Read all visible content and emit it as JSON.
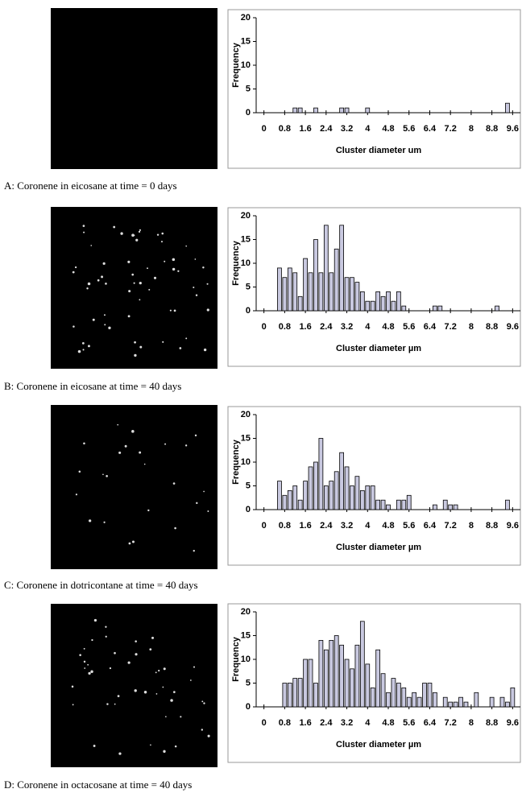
{
  "chart_data": [
    {
      "type": "bar",
      "x_label": "Cluster diameter um",
      "y_label": "Frequency",
      "color": "#c9c9e0",
      "x": [
        1.2,
        1.4,
        2.0,
        3.0,
        3.2,
        4.0,
        9.4
      ],
      "values": [
        1,
        1,
        1,
        1,
        1,
        1,
        2
      ],
      "xlim": [
        -0.3,
        9.9
      ],
      "ylim": [
        0,
        20
      ],
      "xticks": [
        0,
        0.8,
        1.6,
        2.4,
        3.2,
        4,
        4.8,
        5.6,
        6.4,
        7.2,
        8,
        8.8,
        9.6
      ],
      "yticks": [
        0,
        5,
        10,
        15,
        20
      ]
    },
    {
      "type": "bar",
      "x_label": "Cluster diameter µm",
      "y_label": "Frequency",
      "color": "#c9c9e0",
      "x": [
        0.6,
        0.8,
        1.0,
        1.2,
        1.4,
        1.6,
        1.8,
        2.0,
        2.2,
        2.4,
        2.6,
        2.8,
        3.0,
        3.2,
        3.4,
        3.6,
        3.8,
        4.0,
        4.2,
        4.4,
        4.6,
        4.8,
        5.0,
        5.2,
        5.4,
        6.6,
        6.8,
        9.0
      ],
      "values": [
        9,
        7,
        9,
        8,
        3,
        11,
        8,
        15,
        8,
        18,
        8,
        13,
        18,
        7,
        7,
        6,
        4,
        2,
        2,
        4,
        3,
        4,
        2,
        4,
        1,
        1,
        1,
        1
      ],
      "xlim": [
        -0.3,
        9.9
      ],
      "ylim": [
        0,
        20
      ],
      "xticks": [
        0,
        0.8,
        1.6,
        2.4,
        3.2,
        4,
        4.8,
        5.6,
        6.4,
        7.2,
        8,
        8.8,
        9.6
      ],
      "yticks": [
        0,
        5,
        10,
        15,
        20
      ]
    },
    {
      "type": "bar",
      "x_label": "Cluster diameter µm",
      "y_label": "Frequency",
      "color": "#c9c9e0",
      "x": [
        0.6,
        0.8,
        1.0,
        1.2,
        1.4,
        1.6,
        1.8,
        2.0,
        2.2,
        2.4,
        2.6,
        2.8,
        3.0,
        3.2,
        3.4,
        3.6,
        3.8,
        4.0,
        4.2,
        4.4,
        4.6,
        4.8,
        5.2,
        5.4,
        5.6,
        6.6,
        7.0,
        7.2,
        7.4,
        9.4
      ],
      "values": [
        6,
        3,
        4,
        5,
        2,
        6,
        9,
        10,
        15,
        5,
        6,
        8,
        12,
        9,
        5,
        7,
        4,
        5,
        5,
        2,
        2,
        1,
        2,
        2,
        3,
        1,
        2,
        1,
        1,
        2
      ],
      "xlim": [
        -0.3,
        9.9
      ],
      "ylim": [
        0,
        20
      ],
      "xticks": [
        0,
        0.8,
        1.6,
        2.4,
        3.2,
        4,
        4.8,
        5.6,
        6.4,
        7.2,
        8,
        8.8,
        9.6
      ],
      "yticks": [
        0,
        5,
        10,
        15,
        20
      ]
    },
    {
      "type": "bar",
      "x_label": "Cluster diameter µm",
      "y_label": "Frequency",
      "color": "#c9c9e0",
      "x": [
        0.8,
        1.0,
        1.2,
        1.4,
        1.6,
        1.8,
        2.0,
        2.2,
        2.4,
        2.6,
        2.8,
        3.0,
        3.2,
        3.4,
        3.6,
        3.8,
        4.0,
        4.2,
        4.4,
        4.6,
        4.8,
        5.0,
        5.2,
        5.4,
        5.6,
        5.8,
        6.0,
        6.2,
        6.4,
        6.6,
        7.0,
        7.2,
        7.4,
        7.6,
        7.8,
        8.2,
        8.8,
        9.2,
        9.4,
        9.6
      ],
      "values": [
        5,
        5,
        6,
        6,
        10,
        10,
        5,
        14,
        12,
        14,
        15,
        13,
        10,
        8,
        13,
        18,
        9,
        4,
        12,
        7,
        3,
        6,
        5,
        4,
        2,
        3,
        2,
        5,
        5,
        3,
        2,
        1,
        1,
        2,
        1,
        3,
        2,
        2,
        1,
        4
      ],
      "xlim": [
        -0.3,
        9.9
      ],
      "ylim": [
        0,
        20
      ],
      "xticks": [
        0,
        0.8,
        1.6,
        2.4,
        3.2,
        4,
        4.8,
        5.6,
        6.4,
        7.2,
        8,
        8.8,
        9.6
      ],
      "yticks": [
        0,
        5,
        10,
        15,
        20
      ]
    }
  ],
  "captions": [
    "A:  Coronene in eicosane at time  = 0 days",
    "B:  Coronene in eicosane at time  = 40 days",
    "C:  Coronene in dotricontane at time = 40 days",
    "D:  Coronene in octacosane at time = 40 days"
  ]
}
